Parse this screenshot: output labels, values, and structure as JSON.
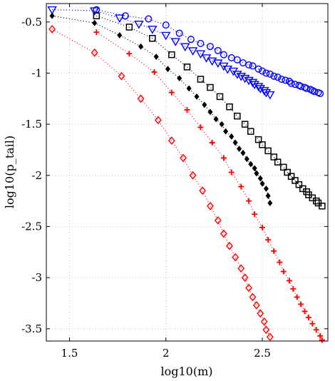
{
  "chart_data": {
    "type": "line",
    "xlabel": "log10(m)",
    "ylabel": "log10(p_tail)",
    "xlim": [
      1.38,
      2.84
    ],
    "ylim": [
      -3.62,
      -0.32
    ],
    "xticks": [
      1.5,
      2,
      2.5
    ],
    "yticks": [
      -0.5,
      -1,
      -1.5,
      -2,
      -2.5,
      -3,
      -3.5
    ],
    "xtick_labels": [
      "1.5",
      "2",
      "2.5"
    ],
    "ytick_labels": [
      "-0.5",
      "-1",
      "-1.5",
      "-2",
      "-2.5",
      "-3",
      "-3.5"
    ],
    "grid": true,
    "line_style": "dotted",
    "series": [
      {
        "marker": "circle",
        "color": "#0000ff",
        "x": [
          1.64,
          1.79,
          1.91,
          2.0,
          2.07,
          2.13,
          2.18,
          2.23,
          2.27,
          2.3,
          2.34,
          2.37,
          2.4,
          2.43,
          2.45,
          2.48,
          2.5,
          2.52,
          2.54,
          2.56,
          2.58,
          2.6,
          2.62,
          2.64,
          2.65,
          2.67,
          2.69,
          2.7,
          2.72,
          2.73,
          2.75,
          2.76,
          2.77,
          2.79,
          2.8
        ],
        "y": [
          -0.38,
          -0.44,
          -0.47,
          -0.53,
          -0.61,
          -0.67,
          -0.71,
          -0.74,
          -0.78,
          -0.82,
          -0.85,
          -0.87,
          -0.9,
          -0.92,
          -0.93,
          -0.96,
          -0.98,
          -1.0,
          -1.01,
          -1.03,
          -1.04,
          -1.06,
          -1.07,
          -1.08,
          -1.1,
          -1.11,
          -1.12,
          -1.13,
          -1.14,
          -1.15,
          -1.16,
          -1.17,
          -1.18,
          -1.19,
          -1.2
        ]
      },
      {
        "marker": "triangle-down",
        "color": "#0000ff",
        "x": [
          1.41,
          1.63,
          1.76,
          1.86,
          1.93,
          2.0,
          2.05,
          2.1,
          2.14,
          2.18,
          2.21,
          2.24,
          2.27,
          2.3,
          2.32,
          2.35,
          2.37,
          2.39,
          2.41,
          2.43,
          2.45,
          2.46,
          2.48,
          2.49,
          2.51,
          2.52,
          2.54
        ],
        "y": [
          -0.38,
          -0.39,
          -0.46,
          -0.52,
          -0.57,
          -0.63,
          -0.69,
          -0.74,
          -0.78,
          -0.81,
          -0.85,
          -0.88,
          -0.9,
          -0.93,
          -0.96,
          -0.98,
          -1.01,
          -1.03,
          -1.05,
          -1.07,
          -1.09,
          -1.11,
          -1.13,
          -1.15,
          -1.17,
          -1.19,
          -1.21
        ]
      },
      {
        "marker": "square",
        "color": "#000000",
        "x": [
          1.64,
          1.81,
          1.93,
          2.03,
          2.11,
          2.18,
          2.23,
          2.28,
          2.33,
          2.37,
          2.41,
          2.44,
          2.48,
          2.5,
          2.53,
          2.56,
          2.58,
          2.61,
          2.63,
          2.65,
          2.67,
          2.69,
          2.71,
          2.73,
          2.74,
          2.76,
          2.78,
          2.79,
          2.81
        ],
        "y": [
          -0.44,
          -0.55,
          -0.66,
          -0.82,
          -0.94,
          -1.06,
          -1.14,
          -1.23,
          -1.33,
          -1.42,
          -1.5,
          -1.57,
          -1.65,
          -1.7,
          -1.76,
          -1.82,
          -1.87,
          -1.92,
          -1.97,
          -2.01,
          -2.05,
          -2.09,
          -2.13,
          -2.16,
          -2.19,
          -2.22,
          -2.25,
          -2.27,
          -2.3
        ]
      },
      {
        "marker": "diamond-filled",
        "color": "#000000",
        "x": [
          1.41,
          1.63,
          1.76,
          1.87,
          1.95,
          2.01,
          2.07,
          2.12,
          2.16,
          2.2,
          2.23,
          2.26,
          2.29,
          2.31,
          2.34,
          2.36,
          2.38,
          2.4,
          2.42,
          2.44,
          2.46,
          2.47,
          2.49,
          2.5,
          2.52,
          2.53,
          2.54
        ],
        "y": [
          -0.44,
          -0.51,
          -0.63,
          -0.74,
          -0.84,
          -0.96,
          -1.05,
          -1.15,
          -1.23,
          -1.31,
          -1.38,
          -1.45,
          -1.5,
          -1.57,
          -1.62,
          -1.68,
          -1.74,
          -1.78,
          -1.84,
          -1.89,
          -1.93,
          -1.98,
          -2.03,
          -2.08,
          -2.13,
          -2.2,
          -2.27
        ]
      },
      {
        "marker": "plus",
        "color": "#ff0000",
        "x": [
          1.64,
          1.81,
          1.94,
          2.03,
          2.11,
          2.18,
          2.24,
          2.3,
          2.34,
          2.39,
          2.43,
          2.46,
          2.5,
          2.53,
          2.56,
          2.59,
          2.61,
          2.64,
          2.66,
          2.68,
          2.7,
          2.72,
          2.74,
          2.76,
          2.78,
          2.8,
          2.81
        ],
        "y": [
          -0.6,
          -0.81,
          -0.99,
          -1.19,
          -1.36,
          -1.53,
          -1.68,
          -1.83,
          -1.97,
          -2.11,
          -2.25,
          -2.38,
          -2.51,
          -2.63,
          -2.74,
          -2.85,
          -2.94,
          -3.03,
          -3.11,
          -3.19,
          -3.26,
          -3.33,
          -3.39,
          -3.45,
          -3.51,
          -3.57,
          -3.61
        ]
      },
      {
        "marker": "diamond-open",
        "color": "#ff0000",
        "x": [
          1.41,
          1.63,
          1.77,
          1.87,
          1.96,
          2.03,
          2.09,
          2.14,
          2.19,
          2.23,
          2.27,
          2.3,
          2.33,
          2.36,
          2.39,
          2.41,
          2.43,
          2.45,
          2.47,
          2.49,
          2.51,
          2.52,
          2.54
        ],
        "y": [
          -0.57,
          -0.8,
          -1.03,
          -1.25,
          -1.46,
          -1.66,
          -1.83,
          -2.0,
          -2.15,
          -2.3,
          -2.44,
          -2.57,
          -2.69,
          -2.8,
          -2.91,
          -3.0,
          -3.1,
          -3.19,
          -3.27,
          -3.35,
          -3.43,
          -3.51,
          -3.58
        ]
      }
    ]
  }
}
